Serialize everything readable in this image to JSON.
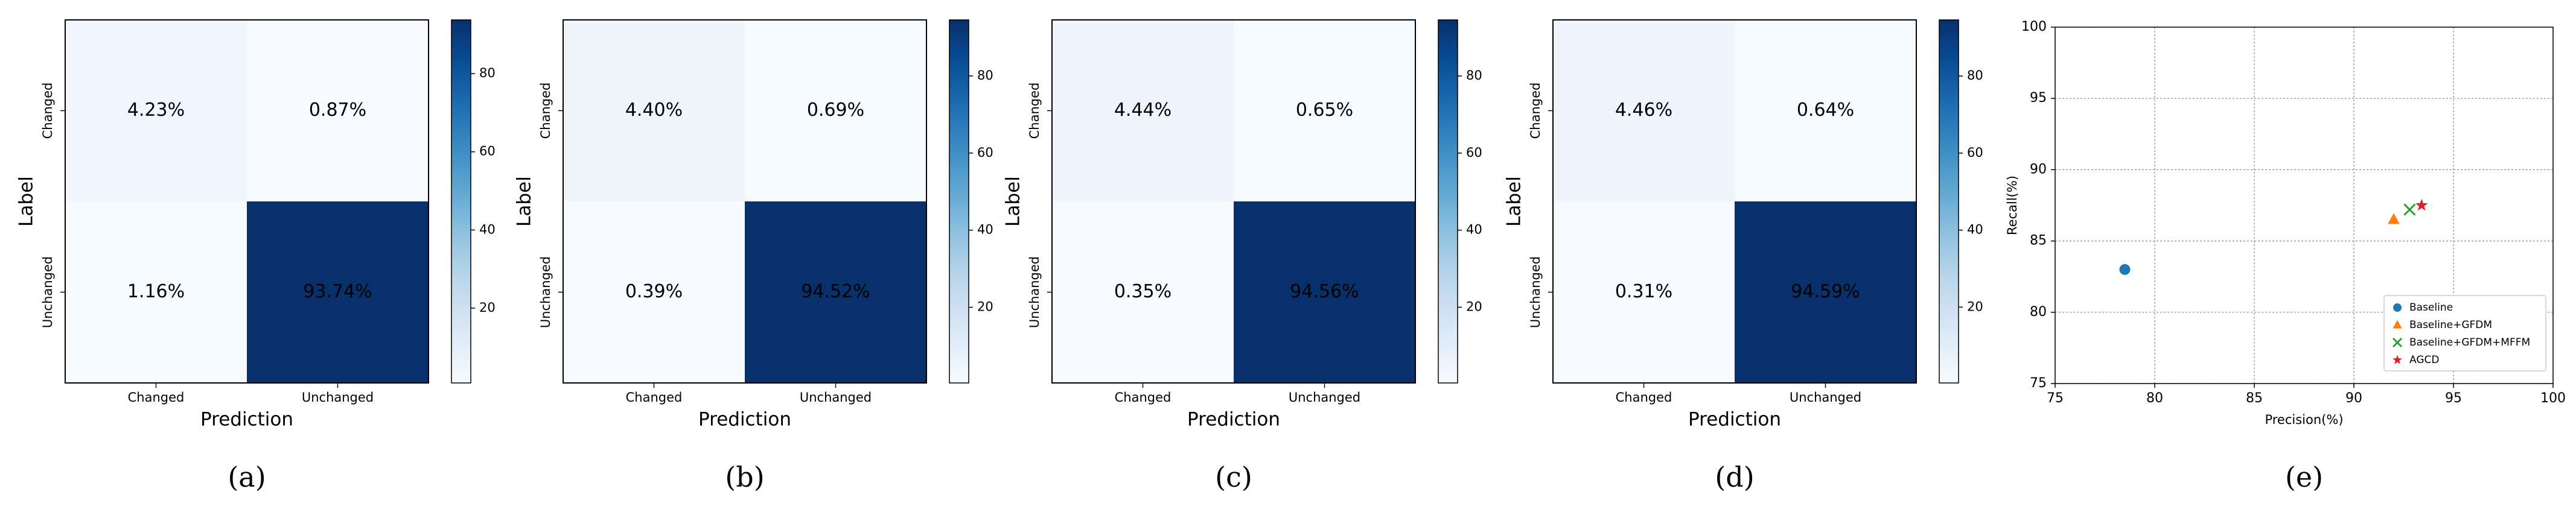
{
  "chart_data": [
    {
      "type": "heatmap",
      "panel_label": "(a)",
      "xlabel": "Prediction",
      "ylabel": "Label",
      "x_categories": [
        "Changed",
        "Unchanged"
      ],
      "y_categories": [
        "Changed",
        "Unchanged"
      ],
      "cells": [
        [
          "4.23%",
          "0.87%"
        ],
        [
          "1.16%",
          "93.74%"
        ]
      ],
      "values": [
        [
          4.23,
          0.87
        ],
        [
          1.16,
          93.74
        ]
      ],
      "colorbar_ticks": [
        "20",
        "40",
        "60",
        "80"
      ],
      "colorbar_tick_values": [
        20,
        40,
        60,
        80
      ],
      "colorbar_range": [
        0.87,
        93.74
      ],
      "colormap": "Blues"
    },
    {
      "type": "heatmap",
      "panel_label": "(b)",
      "xlabel": "Prediction",
      "ylabel": "Label",
      "x_categories": [
        "Changed",
        "Unchanged"
      ],
      "y_categories": [
        "Changed",
        "Unchanged"
      ],
      "cells": [
        [
          "4.40%",
          "0.69%"
        ],
        [
          "0.39%",
          "94.52%"
        ]
      ],
      "values": [
        [
          4.4,
          0.69
        ],
        [
          0.39,
          94.52
        ]
      ],
      "colorbar_ticks": [
        "20",
        "40",
        "60",
        "80"
      ],
      "colorbar_tick_values": [
        20,
        40,
        60,
        80
      ],
      "colorbar_range": [
        0.39,
        94.52
      ],
      "colormap": "Blues"
    },
    {
      "type": "heatmap",
      "panel_label": "(c)",
      "xlabel": "Prediction",
      "ylabel": "Label",
      "x_categories": [
        "Changed",
        "Unchanged"
      ],
      "y_categories": [
        "Changed",
        "Unchanged"
      ],
      "cells": [
        [
          "4.44%",
          "0.65%"
        ],
        [
          "0.35%",
          "94.56%"
        ]
      ],
      "values": [
        [
          4.44,
          0.65
        ],
        [
          0.35,
          94.56
        ]
      ],
      "colorbar_ticks": [
        "20",
        "40",
        "60",
        "80"
      ],
      "colorbar_tick_values": [
        20,
        40,
        60,
        80
      ],
      "colorbar_range": [
        0.35,
        94.56
      ],
      "colormap": "Blues"
    },
    {
      "type": "heatmap",
      "panel_label": "(d)",
      "xlabel": "Prediction",
      "ylabel": "Label",
      "x_categories": [
        "Changed",
        "Unchanged"
      ],
      "y_categories": [
        "Changed",
        "Unchanged"
      ],
      "cells": [
        [
          "4.46%",
          "0.64%"
        ],
        [
          "0.31%",
          "94.59%"
        ]
      ],
      "values": [
        [
          4.46,
          0.64
        ],
        [
          0.31,
          94.59
        ]
      ],
      "colorbar_ticks": [
        "20",
        "40",
        "60",
        "80"
      ],
      "colorbar_tick_values": [
        20,
        40,
        60,
        80
      ],
      "colorbar_range": [
        0.31,
        94.59
      ],
      "colormap": "Blues"
    },
    {
      "type": "scatter",
      "panel_label": "(e)",
      "xlabel": "Precision(%)",
      "ylabel": "Recall(%)",
      "xlim": [
        75,
        100
      ],
      "ylim": [
        75,
        100
      ],
      "xticks": [
        75,
        80,
        85,
        90,
        95,
        100
      ],
      "yticks": [
        75,
        80,
        85,
        90,
        95,
        100
      ],
      "grid": true,
      "legend_position": "lower-right",
      "series": [
        {
          "name": "Baseline",
          "marker": "circle",
          "color": "#1f77b4",
          "x": 78.5,
          "y": 83.0
        },
        {
          "name": "Baseline+GFDM",
          "marker": "triangle",
          "color": "#ff7f0e",
          "x": 92.0,
          "y": 86.5
        },
        {
          "name": "Baseline+GFDM+MFFM",
          "marker": "x",
          "color": "#2ca02c",
          "x": 92.8,
          "y": 87.2
        },
        {
          "name": "AGCD",
          "marker": "star",
          "color": "#d62728",
          "x": 93.4,
          "y": 87.5
        }
      ]
    }
  ]
}
